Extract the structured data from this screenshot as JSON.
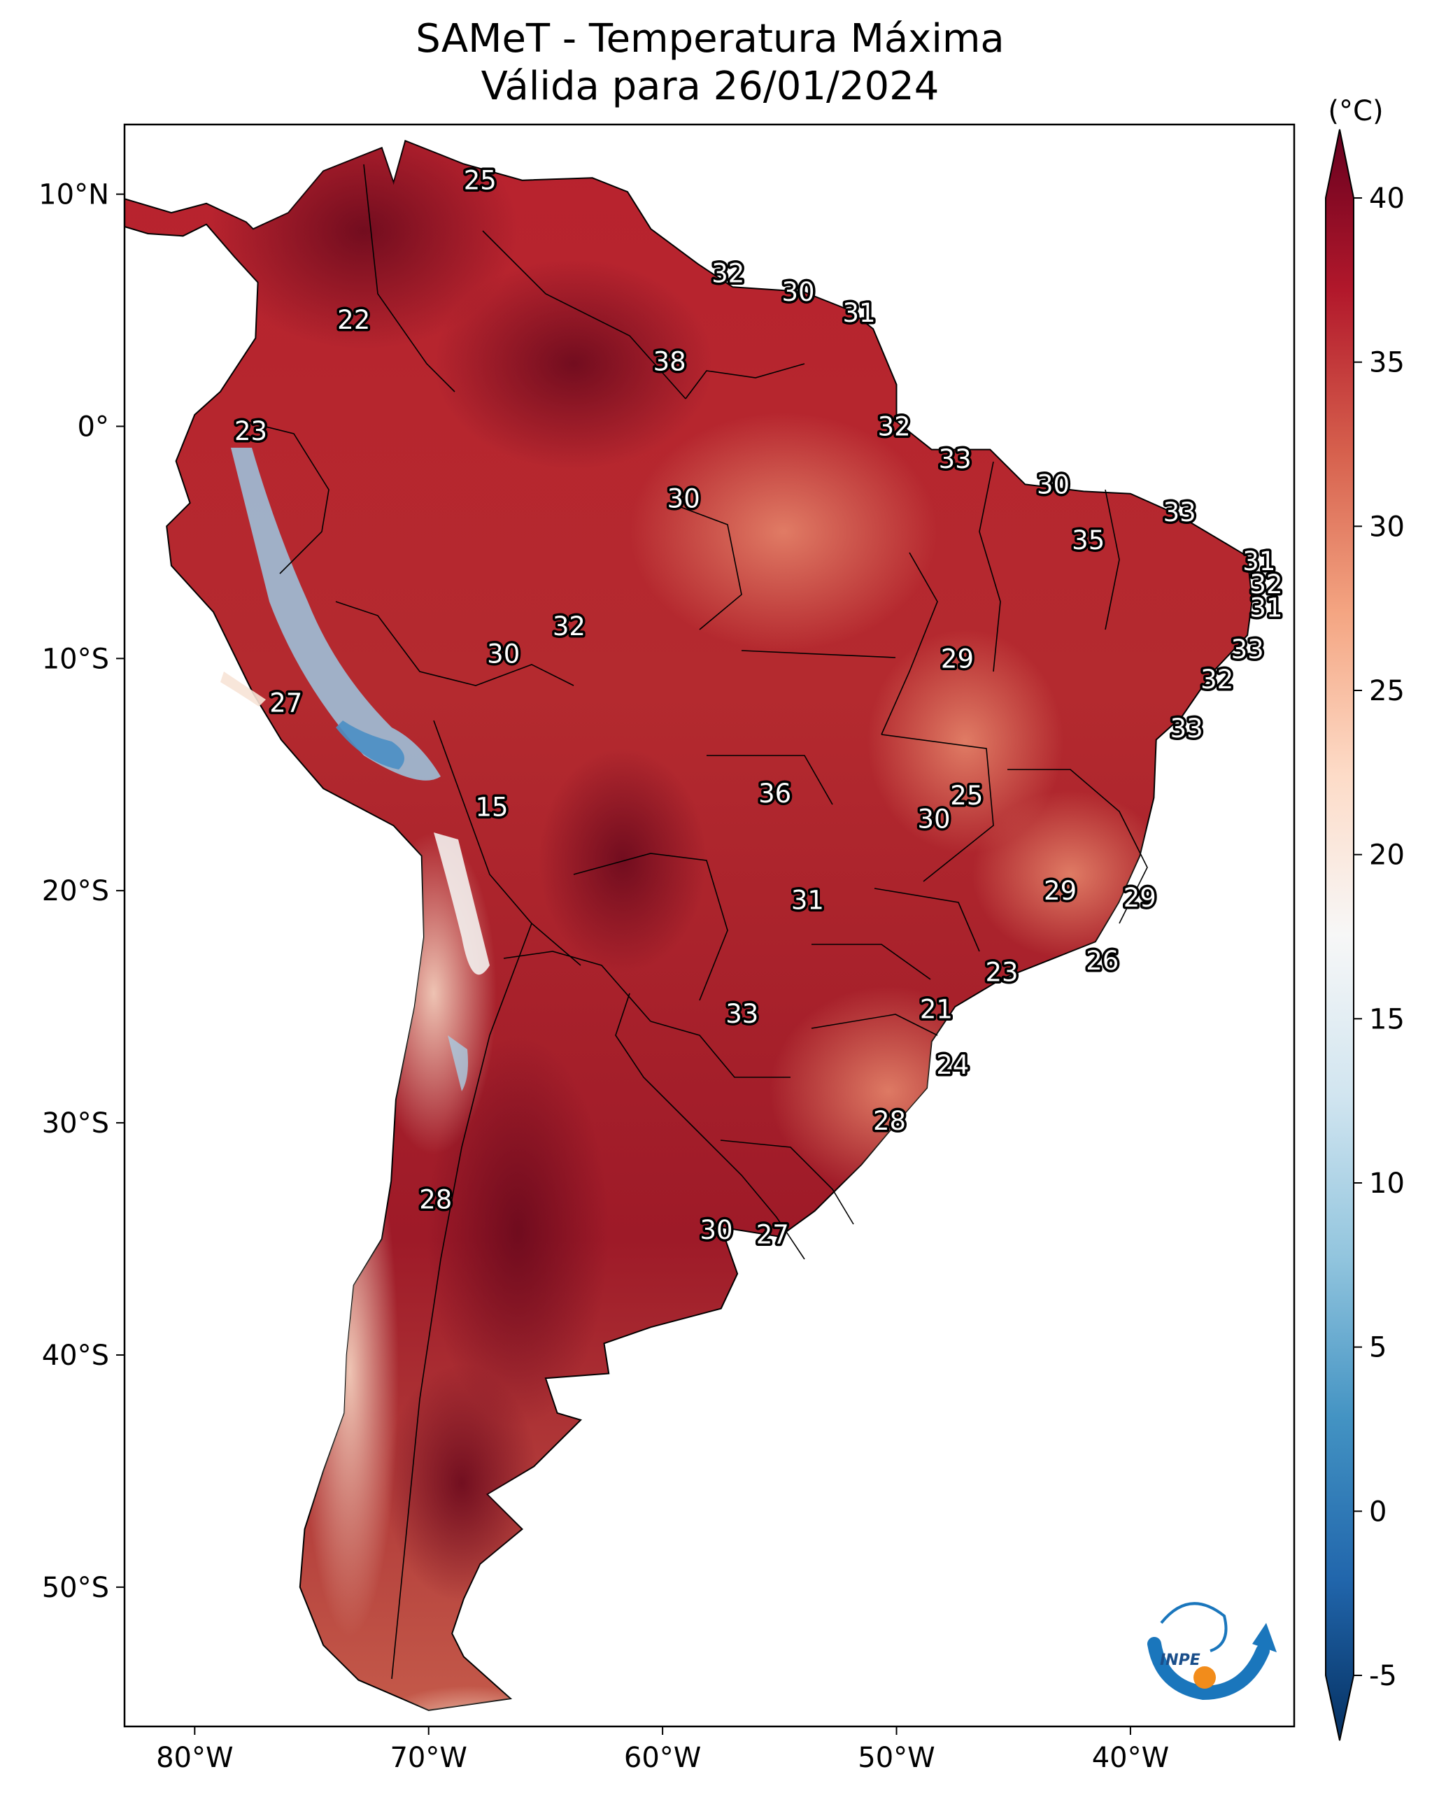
{
  "title_line1": "SAMeT - Temperatura Máxima",
  "title_line2": "Válida para 26/01/2024",
  "colorbar": {
    "unit_label": "(°C)",
    "ticks": [
      {
        "value": 40,
        "label": "40"
      },
      {
        "value": 35,
        "label": "35"
      },
      {
        "value": 30,
        "label": "30"
      },
      {
        "value": 25,
        "label": "25"
      },
      {
        "value": 20,
        "label": "20"
      },
      {
        "value": 15,
        "label": "15"
      },
      {
        "value": 10,
        "label": "10"
      },
      {
        "value": 5,
        "label": "5"
      },
      {
        "value": 0,
        "label": "0"
      },
      {
        "value": -5,
        "label": "-5"
      }
    ],
    "colors": [
      "#053061",
      "#2166ac",
      "#4393c3",
      "#92c5de",
      "#d1e5f0",
      "#f7f7f7",
      "#fddbc7",
      "#f4a582",
      "#d6604d",
      "#b2182b",
      "#67001f"
    ]
  },
  "axes": {
    "lon_range": [
      -83,
      -33
    ],
    "lat_range": [
      -56,
      13
    ],
    "x_ticks": [
      {
        "value": -80,
        "label": "80°W"
      },
      {
        "value": -70,
        "label": "70°W"
      },
      {
        "value": -60,
        "label": "60°W"
      },
      {
        "value": -50,
        "label": "50°W"
      },
      {
        "value": -40,
        "label": "40°W"
      }
    ],
    "y_ticks": [
      {
        "value": 10,
        "label": "10°N"
      },
      {
        "value": 0,
        "label": "0°"
      },
      {
        "value": -10,
        "label": "10°S"
      },
      {
        "value": -20,
        "label": "20°S"
      },
      {
        "value": -30,
        "label": "30°S"
      },
      {
        "value": -40,
        "label": "40°S"
      },
      {
        "value": -50,
        "label": "50°S"
      }
    ]
  },
  "logo_text": "INPE",
  "labels": [
    {
      "v": "25",
      "lon": -67.8,
      "lat": 10.6
    },
    {
      "v": "32",
      "lon": -57.2,
      "lat": 6.6
    },
    {
      "v": "30",
      "lon": -54.2,
      "lat": 5.8
    },
    {
      "v": "31",
      "lon": -51.6,
      "lat": 4.9
    },
    {
      "v": "22",
      "lon": -73.2,
      "lat": 4.6
    },
    {
      "v": "38",
      "lon": -59.7,
      "lat": 2.8
    },
    {
      "v": "23",
      "lon": -77.6,
      "lat": -0.2
    },
    {
      "v": "32",
      "lon": -50.1,
      "lat": 0.0
    },
    {
      "v": "33",
      "lon": -47.5,
      "lat": -1.4
    },
    {
      "v": "30",
      "lon": -59.1,
      "lat": -3.1
    },
    {
      "v": "30",
      "lon": -43.3,
      "lat": -2.5
    },
    {
      "v": "33",
      "lon": -37.9,
      "lat": -3.7
    },
    {
      "v": "35",
      "lon": -41.8,
      "lat": -4.9
    },
    {
      "v": "31",
      "lon": -34.5,
      "lat": -5.8
    },
    {
      "v": "32",
      "lon": -34.2,
      "lat": -6.8
    },
    {
      "v": "31",
      "lon": -34.2,
      "lat": -7.8
    },
    {
      "v": "32",
      "lon": -64.0,
      "lat": -8.6
    },
    {
      "v": "33",
      "lon": -35.0,
      "lat": -9.6
    },
    {
      "v": "30",
      "lon": -66.8,
      "lat": -9.8
    },
    {
      "v": "29",
      "lon": -47.4,
      "lat": -10.0
    },
    {
      "v": "32",
      "lon": -36.3,
      "lat": -10.9
    },
    {
      "v": "27",
      "lon": -76.1,
      "lat": -11.9
    },
    {
      "v": "33",
      "lon": -37.6,
      "lat": -13.0
    },
    {
      "v": "36",
      "lon": -55.2,
      "lat": -15.8
    },
    {
      "v": "25",
      "lon": -47.0,
      "lat": -15.9
    },
    {
      "v": "15",
      "lon": -67.3,
      "lat": -16.4
    },
    {
      "v": "30",
      "lon": -48.4,
      "lat": -16.9
    },
    {
      "v": "29",
      "lon": -43.0,
      "lat": -20.0
    },
    {
      "v": "31",
      "lon": -53.8,
      "lat": -20.4
    },
    {
      "v": "29",
      "lon": -39.6,
      "lat": -20.3
    },
    {
      "v": "26",
      "lon": -41.2,
      "lat": -23.0
    },
    {
      "v": "23",
      "lon": -45.5,
      "lat": -23.5
    },
    {
      "v": "21",
      "lon": -48.3,
      "lat": -25.1
    },
    {
      "v": "33",
      "lon": -56.6,
      "lat": -25.3
    },
    {
      "v": "24",
      "lon": -47.6,
      "lat": -27.5
    },
    {
      "v": "28",
      "lon": -50.3,
      "lat": -29.9
    },
    {
      "v": "28",
      "lon": -69.7,
      "lat": -33.3
    },
    {
      "v": "30",
      "lon": -57.7,
      "lat": -34.6
    },
    {
      "v": "27",
      "lon": -55.3,
      "lat": -34.8
    }
  ]
}
